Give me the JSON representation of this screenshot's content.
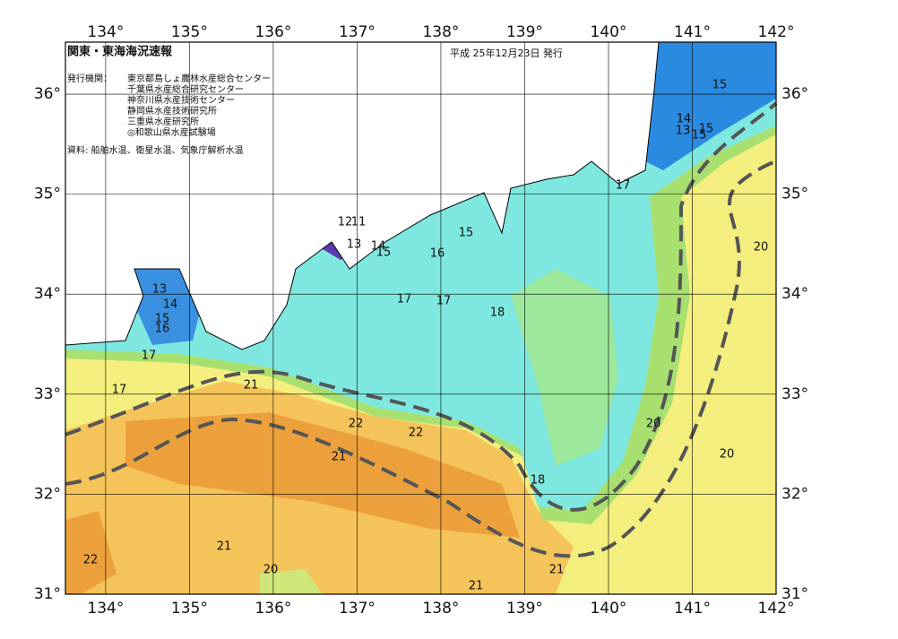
{
  "header": {
    "title": "関東・東海海況速報",
    "date": "平成 25年12月23日 発行",
    "issuer_label": "発行機関：",
    "issuers": [
      "東京都島しょ農林水産総合センター",
      "千葉県水産総合研究センター",
      "神奈川県水産技術センター",
      "静岡県水産技術研究所",
      "三重県水産研究所",
      "◎和歌山県水産試験場"
    ],
    "source": "資料: 船舶水温、衛星水温、気象庁解析水温"
  },
  "map": {
    "xlim": [
      133.52,
      142
    ],
    "ylim": [
      31,
      36.52
    ],
    "xticks": [
      {
        "value": 134,
        "label": "134°"
      },
      {
        "value": 135,
        "label": "135°"
      },
      {
        "value": 136,
        "label": "136°"
      },
      {
        "value": 137,
        "label": "137°"
      },
      {
        "value": 138,
        "label": "138°"
      },
      {
        "value": 139,
        "label": "139°"
      },
      {
        "value": 140,
        "label": "140°"
      },
      {
        "value": 141,
        "label": "141°"
      },
      {
        "value": 142,
        "label": "142°"
      }
    ],
    "yticks": [
      {
        "value": 31,
        "label": "31°"
      },
      {
        "value": 32,
        "label": "32°"
      },
      {
        "value": 33,
        "label": "33°"
      },
      {
        "value": 34,
        "label": "34°"
      },
      {
        "value": 35,
        "label": "35°"
      },
      {
        "value": 36,
        "label": "36°"
      }
    ],
    "grid": true,
    "contour_labels": [
      15,
      14,
      13,
      15,
      15,
      17,
      12,
      11,
      13,
      14,
      15,
      15,
      16,
      13,
      14,
      15,
      16,
      17,
      17,
      17,
      17,
      18,
      21,
      22,
      22,
      21,
      18,
      20,
      20,
      20,
      21,
      22,
      20,
      21,
      21
    ]
  }
}
